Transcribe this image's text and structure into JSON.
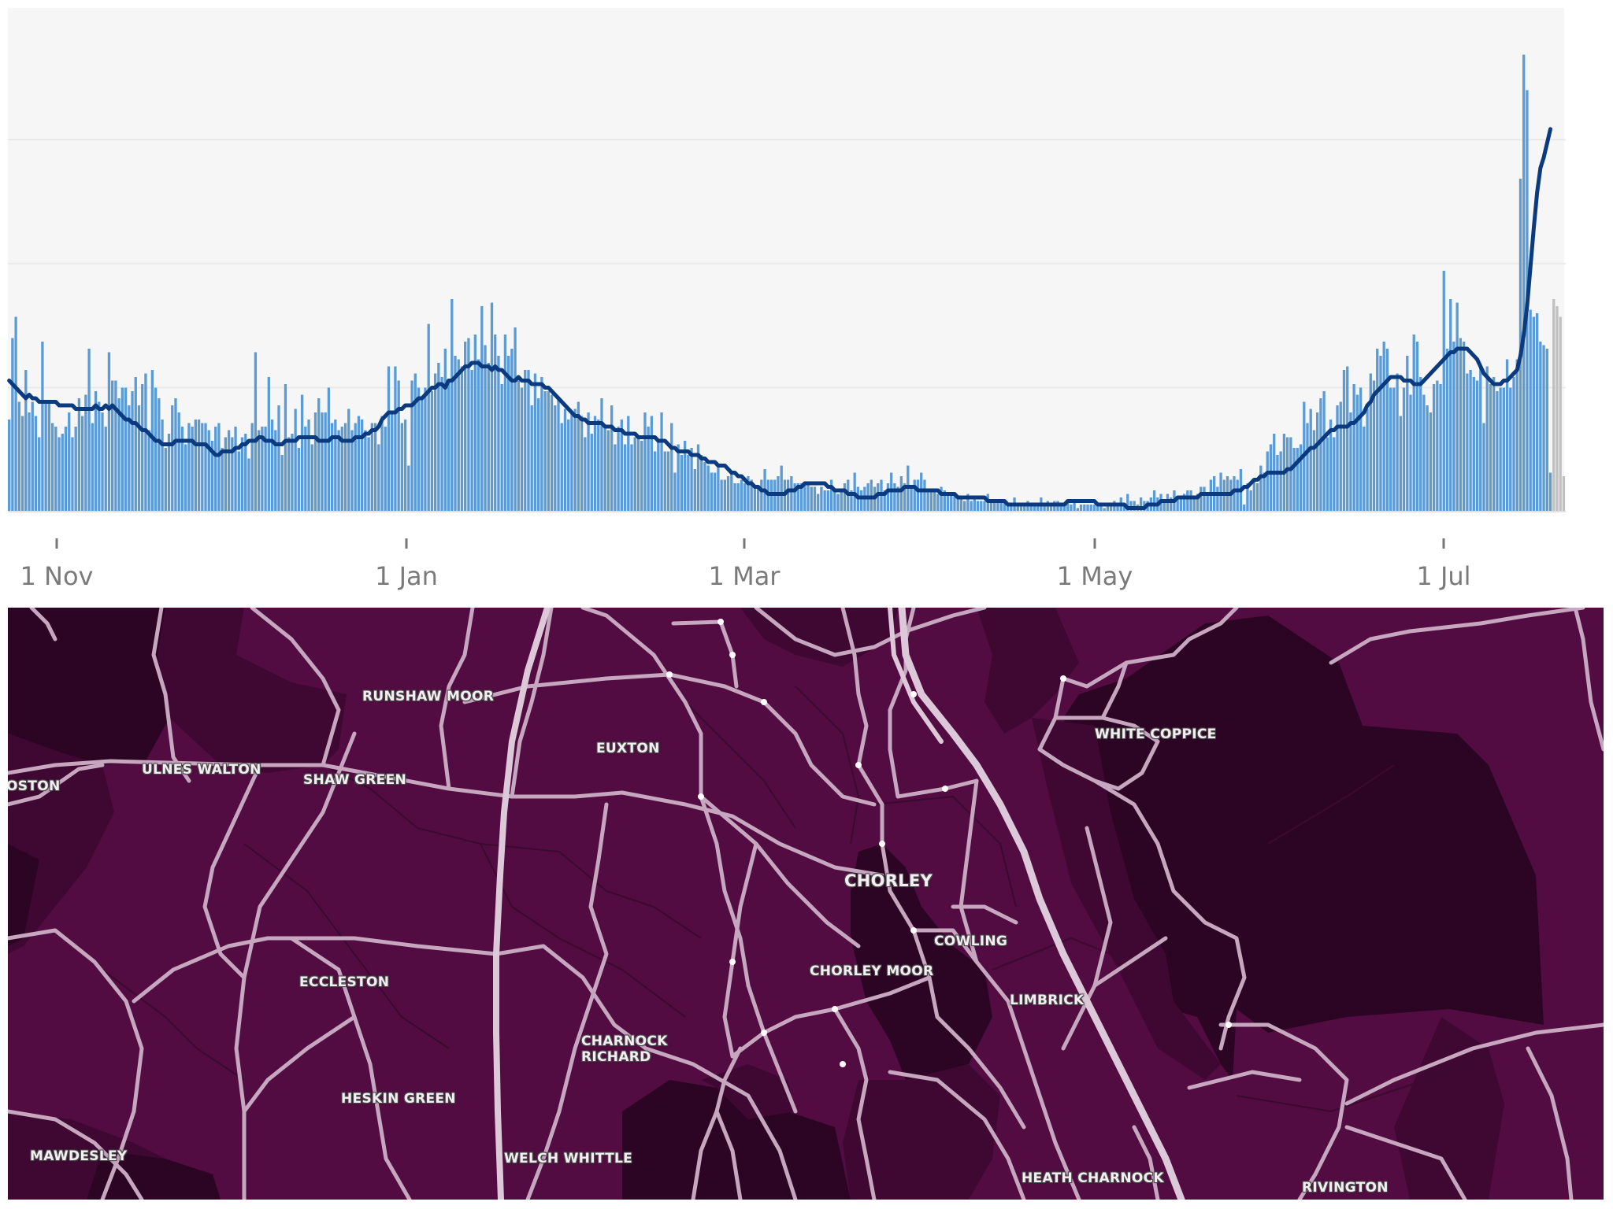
{
  "chart_data": {
    "type": "bar",
    "x_tick_labels": [
      "1 Nov",
      "1 Jan",
      "1 Mar",
      "1 May",
      "1 Jul"
    ],
    "series": [
      {
        "kind": "bar",
        "values": [
          26,
          49,
          55,
          31,
          27,
          40,
          28,
          31,
          27,
          21,
          48,
          31,
          31,
          25,
          24,
          21,
          22,
          24,
          28,
          21,
          24,
          32,
          27,
          33,
          46,
          25,
          34,
          31,
          28,
          24,
          45,
          37,
          37,
          32,
          35,
          35,
          30,
          34,
          38,
          30,
          36,
          39,
          23,
          40,
          35,
          32,
          26,
          18,
          22,
          30,
          32,
          28,
          24,
          19,
          25,
          24,
          26,
          26,
          25,
          25,
          23,
          20,
          24,
          25,
          18,
          21,
          23,
          21,
          24,
          17,
          21,
          22,
          15,
          25,
          45,
          23,
          24,
          24,
          38,
          26,
          23,
          30,
          16,
          36,
          21,
          22,
          29,
          18,
          33,
          24,
          26,
          19,
          28,
          32,
          28,
          28,
          35,
          25,
          26,
          23,
          24,
          25,
          29,
          23,
          25,
          27,
          26,
          23,
          21,
          25,
          25,
          19,
          27,
          24,
          41,
          28,
          41,
          37,
          25,
          26,
          13,
          37,
          39,
          35,
          32,
          35,
          53,
          34,
          39,
          42,
          38,
          46,
          37,
          60,
          44,
          43,
          41,
          48,
          49,
          40,
          50,
          43,
          58,
          47,
          42,
          59,
          50,
          44,
          36,
          50,
          44,
          46,
          52,
          37,
          35,
          40,
          40,
          30,
          39,
          32,
          38,
          34,
          34,
          33,
          30,
          32,
          25,
          29,
          26,
          28,
          29,
          31,
          27,
          21,
          28,
          22,
          27,
          26,
          32,
          24,
          23,
          30,
          19,
          24,
          26,
          19,
          27,
          19,
          21,
          21,
          20,
          28,
          24,
          27,
          17,
          20,
          28,
          17,
          17,
          25,
          11,
          19,
          16,
          20,
          16,
          18,
          12,
          19,
          16,
          14,
          13,
          11,
          11,
          13,
          9,
          9,
          10,
          11,
          8,
          8,
          9,
          8,
          10,
          9,
          7,
          7,
          9,
          12,
          9,
          9,
          9,
          10,
          13,
          9,
          9,
          10,
          8,
          8,
          8,
          8,
          8,
          7,
          7,
          5,
          7,
          6,
          6,
          9,
          6,
          5,
          6,
          8,
          9,
          6,
          11,
          7,
          6,
          7,
          8,
          9,
          7,
          8,
          9,
          6,
          8,
          11,
          8,
          7,
          10,
          8,
          13,
          7,
          9,
          9,
          11,
          9,
          6,
          6,
          6,
          5,
          7,
          6,
          5,
          5,
          5,
          4,
          4,
          3,
          5,
          3,
          4,
          3,
          3,
          3,
          5,
          3,
          3,
          3,
          3,
          3,
          2,
          2,
          4,
          2,
          2,
          2,
          3,
          2,
          2,
          2,
          4,
          2,
          3,
          2,
          3,
          3,
          2,
          2,
          3,
          2,
          3,
          1,
          2,
          2,
          2,
          2,
          2,
          2,
          2,
          1,
          2,
          2,
          3,
          2,
          4,
          2,
          5,
          3,
          3,
          2,
          4,
          3,
          3,
          4,
          6,
          4,
          5,
          3,
          5,
          4,
          6,
          4,
          4,
          5,
          6,
          6,
          4,
          5,
          7,
          7,
          5,
          9,
          10,
          7,
          11,
          9,
          10,
          9,
          10,
          9,
          12,
          2,
          8,
          6,
          9,
          8,
          13,
          11,
          17,
          19,
          22,
          16,
          17,
          22,
          21,
          21,
          18,
          18,
          19,
          31,
          25,
          29,
          23,
          28,
          32,
          34,
          21,
          26,
          21,
          30,
          31,
          40,
          41,
          28,
          36,
          33,
          35,
          24,
          29,
          39,
          37,
          46,
          44,
          48,
          46,
          35,
          35,
          39,
          27,
          35,
          44,
          33,
          50,
          48,
          38,
          33,
          30,
          28,
          36,
          37,
          36,
          68,
          46,
          60,
          48,
          59,
          49,
          48,
          39,
          40,
          38,
          37,
          41,
          25,
          41,
          36,
          38,
          34,
          35,
          35,
          43,
          35,
          38,
          43,
          94,
          129,
          119,
          57,
          55,
          56,
          48,
          47,
          46,
          11
        ],
        "color": "#5b9bd5"
      },
      {
        "kind": "line",
        "values": [
          37,
          36,
          35,
          34,
          33,
          32,
          33,
          32,
          32,
          31,
          31,
          31,
          31,
          31,
          31,
          30,
          30,
          30,
          30,
          30,
          29,
          29,
          29,
          29,
          29,
          29,
          30,
          29,
          29,
          30,
          29,
          30,
          29,
          28,
          27,
          26,
          26,
          25,
          25,
          24,
          23,
          23,
          22,
          21,
          20,
          20,
          19,
          19,
          19,
          19,
          20,
          20,
          20,
          20,
          20,
          20,
          19,
          19,
          19,
          19,
          18,
          17,
          16,
          16,
          17,
          17,
          17,
          17,
          18,
          18,
          19,
          19,
          20,
          20,
          20,
          21,
          21,
          20,
          20,
          20,
          19,
          19,
          19,
          20,
          20,
          20,
          20,
          21,
          21,
          21,
          21,
          21,
          21,
          20,
          20,
          20,
          20,
          21,
          21,
          21,
          20,
          20,
          20,
          20,
          21,
          21,
          21,
          22,
          22,
          23,
          23,
          24,
          26,
          27,
          28,
          28,
          28,
          29,
          29,
          30,
          30,
          30,
          31,
          32,
          32,
          33,
          34,
          35,
          35,
          36,
          36,
          35,
          37,
          37,
          38,
          39,
          40,
          41,
          41,
          42,
          42,
          42,
          41,
          41,
          41,
          40,
          41,
          40,
          40,
          39,
          38,
          37,
          37,
          38,
          37,
          37,
          37,
          36,
          36,
          36,
          36,
          35,
          35,
          34,
          33,
          32,
          31,
          30,
          29,
          28,
          27,
          27,
          26,
          26,
          25,
          25,
          25,
          25,
          25,
          24,
          24,
          24,
          23,
          23,
          23,
          22,
          22,
          22,
          22,
          21,
          21,
          21,
          21,
          21,
          21,
          20,
          20,
          20,
          19,
          18,
          18,
          17,
          17,
          17,
          17,
          16,
          16,
          16,
          15,
          15,
          14,
          14,
          14,
          13,
          13,
          13,
          12,
          11,
          11,
          10,
          10,
          9,
          8,
          8,
          7,
          7,
          6,
          6,
          5,
          5,
          5,
          5,
          5,
          5,
          6,
          6,
          6,
          7,
          7,
          8,
          8,
          8,
          8,
          8,
          8,
          8,
          7,
          7,
          6,
          6,
          6,
          6,
          5,
          5,
          5,
          4,
          4,
          4,
          4,
          4,
          4,
          5,
          5,
          5,
          6,
          6,
          6,
          6,
          6,
          7,
          7,
          7,
          7,
          6,
          6,
          6,
          6,
          6,
          6,
          6,
          5,
          5,
          5,
          5,
          5,
          4,
          4,
          4,
          4,
          4,
          4,
          4,
          4,
          4,
          3,
          3,
          3,
          3,
          3,
          3,
          2,
          2,
          2,
          2,
          2,
          2,
          2,
          2,
          2,
          2,
          2,
          2,
          2,
          2,
          2,
          2,
          2,
          2,
          3,
          3,
          3,
          3,
          3,
          3,
          3,
          3,
          3,
          2,
          2,
          2,
          2,
          2,
          2,
          2,
          2,
          2,
          1,
          1,
          1,
          1,
          1,
          1,
          2,
          2,
          2,
          2,
          3,
          3,
          3,
          3,
          3,
          4,
          4,
          4,
          4,
          4,
          4,
          4,
          5,
          5,
          5,
          5,
          5,
          5,
          5,
          5,
          5,
          5,
          6,
          6,
          6,
          7,
          7,
          8,
          9,
          9,
          10,
          10,
          11,
          11,
          11,
          11,
          11,
          11,
          12,
          12,
          13,
          14,
          15,
          16,
          17,
          18,
          18,
          19,
          20,
          21,
          22,
          23,
          23,
          24,
          24,
          24,
          24,
          25,
          25,
          26,
          27,
          28,
          30,
          31,
          33,
          34,
          35,
          36,
          37,
          38,
          38,
          38,
          38,
          37,
          37,
          37,
          36,
          36,
          36,
          37,
          38,
          39,
          40,
          41,
          42,
          43,
          44,
          45,
          45,
          46,
          46,
          46,
          46,
          45,
          44,
          43,
          41,
          39,
          38,
          37,
          36,
          36,
          36,
          37,
          37,
          38,
          39,
          40,
          44,
          50,
          58,
          69,
          80,
          90,
          97,
          100,
          104,
          108
        ],
        "color": "#0b3a7e"
      }
    ],
    "trailing_gray_bars": [
      60,
      58,
      55,
      10
    ],
    "gray_color": "#c0c0c0",
    "ylim": [
      0,
      140
    ],
    "grid": true
  },
  "map": {
    "labels": {
      "runshaw_moor": "RUNSHAW MOOR",
      "euxton": "EUXTON",
      "white_coppice": "WHITE COPPICE",
      "ulnes_walton": "ULNES WALTON",
      "shaw_green": "SHAW GREEN",
      "oston": "OSTON",
      "chorley": "CHORLEY",
      "cowling": "COWLING",
      "chorley_moor": "CHORLEY MOOR",
      "limbrick": "LIMBRICK",
      "eccleston": "ECCLESTON",
      "charnock_richard": "CHARNOCK\nRICHARD",
      "heskin_green": "HESKIN GREEN",
      "mawdesley": "MAWDESLEY",
      "welch_whittle": "WELCH WHITTLE",
      "heath_charnock": "HEATH CHARNOCK",
      "rivington": "RIVINGTON"
    },
    "colors": {
      "base": "#520c42",
      "dark": "#2d0524",
      "medium_dark": "#3e0832",
      "road": "#c7a6c0",
      "motorway": "#dcc8d8",
      "boundary": "#3a0a2f"
    }
  }
}
